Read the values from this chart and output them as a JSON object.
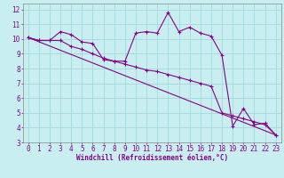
{
  "xlabel": "Windchill (Refroidissement éolien,°C)",
  "background_color": "#c8eef0",
  "grid_color": "#a0d8dc",
  "line_color": "#880088",
  "xlim": [
    -0.5,
    23.5
  ],
  "ylim": [
    3,
    12.4
  ],
  "xticks": [
    0,
    1,
    2,
    3,
    4,
    5,
    6,
    7,
    8,
    9,
    10,
    11,
    12,
    13,
    14,
    15,
    16,
    17,
    18,
    19,
    20,
    21,
    22,
    23
  ],
  "yticks": [
    3,
    4,
    5,
    6,
    7,
    8,
    9,
    10,
    11,
    12
  ],
  "line1_x": [
    0,
    1,
    2,
    3,
    4,
    5,
    6,
    7,
    8,
    9,
    10,
    11,
    12,
    13,
    14,
    15,
    16,
    17,
    18,
    19,
    20,
    21,
    22,
    23
  ],
  "line1_y": [
    10.1,
    9.9,
    9.9,
    10.5,
    10.3,
    9.8,
    9.7,
    8.6,
    8.5,
    8.5,
    10.4,
    10.5,
    10.4,
    11.8,
    10.5,
    10.8,
    10.4,
    10.2,
    8.9,
    4.1,
    5.3,
    4.2,
    4.3,
    3.5
  ],
  "line2_x": [
    0,
    1,
    2,
    3,
    4,
    5,
    6,
    7,
    8,
    9,
    10,
    11,
    12,
    13,
    14,
    15,
    16,
    17,
    18,
    19,
    20,
    21,
    22,
    23
  ],
  "line2_y": [
    10.1,
    9.9,
    9.9,
    9.9,
    9.5,
    9.3,
    9.0,
    8.7,
    8.5,
    8.3,
    8.1,
    7.9,
    7.8,
    7.6,
    7.4,
    7.2,
    7.0,
    6.8,
    5.0,
    4.8,
    4.6,
    4.4,
    4.2,
    3.5
  ],
  "line3_x": [
    0,
    23
  ],
  "line3_y": [
    10.1,
    3.5
  ],
  "tick_fontsize": 5.5,
  "xlabel_fontsize": 5.5,
  "marker_size": 2.5,
  "linewidth": 0.8
}
